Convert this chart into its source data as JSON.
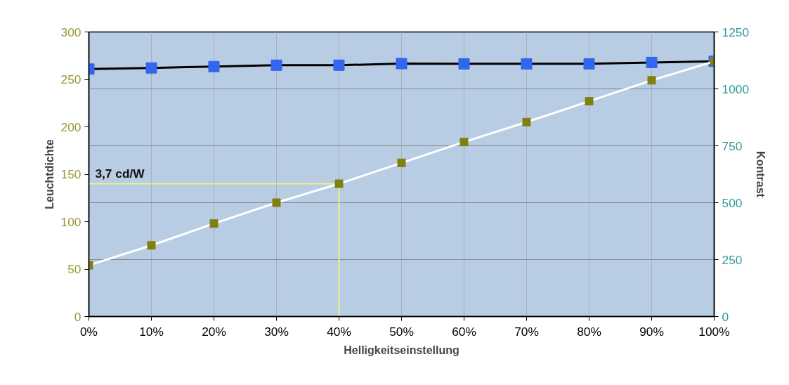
{
  "chart_data": {
    "type": "line",
    "xlabel": "Helligkeitseinstellung",
    "ylabel": "Leuchtdichte",
    "y2label": "Kontrast",
    "x": [
      0,
      10,
      20,
      30,
      40,
      50,
      60,
      70,
      80,
      90,
      100
    ],
    "xlim": [
      0,
      100
    ],
    "xticks": [
      {
        "value": 0,
        "label": "0%"
      },
      {
        "value": 10,
        "label": "10%"
      },
      {
        "value": 20,
        "label": "20%"
      },
      {
        "value": 30,
        "label": "30%"
      },
      {
        "value": 40,
        "label": "40%"
      },
      {
        "value": 50,
        "label": "50%"
      },
      {
        "value": 60,
        "label": "60%"
      },
      {
        "value": 70,
        "label": "70%"
      },
      {
        "value": 80,
        "label": "80%"
      },
      {
        "value": 90,
        "label": "90%"
      },
      {
        "value": 100,
        "label": "100%"
      }
    ],
    "ylim": [
      0,
      300
    ],
    "yticks": [
      0,
      50,
      100,
      150,
      200,
      250,
      300
    ],
    "y2lim": [
      0,
      1250
    ],
    "y2ticks": [
      0,
      250,
      500,
      750,
      1000,
      1250
    ],
    "grid": true,
    "marker": "square",
    "line_style": "solid",
    "series": [
      {
        "color": "#3366ee",
        "axis": "y2",
        "values": [
          1087,
          1092,
          1098,
          1104,
          1104,
          1111,
          1110,
          1110,
          1110,
          1116,
          1121
        ]
      },
      {
        "color": "#808010",
        "values": [
          54,
          75,
          98,
          120,
          140,
          162,
          184,
          205,
          227,
          249,
          269
        ]
      }
    ],
    "ref_lines": [
      {
        "axis": "y",
        "value": 140,
        "label": "3,7 cd/W",
        "color": "#eeee88"
      },
      {
        "axis": "x",
        "value": 40,
        "color": "#eeee88"
      }
    ]
  }
}
